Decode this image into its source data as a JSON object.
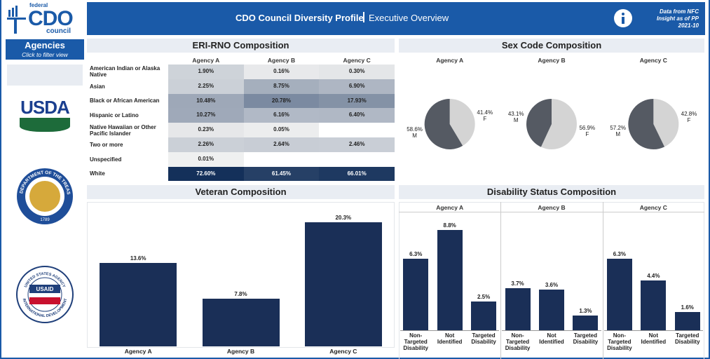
{
  "logo": {
    "top": "federal",
    "main": "CDO",
    "bottom": "council"
  },
  "header": {
    "title": "CDO Council Diversity Profile",
    "subtitle": "Executive Overview",
    "note": [
      "Data from NFC",
      "Insight as of PP",
      "2021-10"
    ]
  },
  "sidebar": {
    "title": "Agencies",
    "hint": "Click to filter view",
    "logos": [
      {
        "label": "USDA"
      },
      {
        "label": "THE DEPARTMENT OF THE TREASURY",
        "year": "1789"
      },
      {
        "label": "USAID",
        "top": "UNITED STATES AGENCY",
        "bottom": "INTERNATIONAL DEVELOPMENT"
      }
    ]
  },
  "chart_data": [
    {
      "type": "heatmap",
      "title": "ERI-RNO Composition",
      "columns": [
        "Agency A",
        "Agency B",
        "Agency C"
      ],
      "rows": [
        "American Indian or Alaska Native",
        "Asian",
        "Black or African American",
        "Hispanic or Latino",
        "Native Hawaiian or Other Pacific Islander",
        "Two or more",
        "Unspecified",
        "White"
      ],
      "values": [
        [
          1.9,
          0.16,
          0.3
        ],
        [
          2.25,
          8.75,
          6.9
        ],
        [
          10.48,
          20.78,
          17.93
        ],
        [
          10.27,
          6.16,
          6.4
        ],
        [
          0.23,
          0.05,
          null
        ],
        [
          2.26,
          2.64,
          2.46
        ],
        [
          0.01,
          null,
          null
        ],
        [
          72.6,
          61.45,
          66.01
        ]
      ],
      "value_labels": [
        [
          "1.90%",
          "0.16%",
          "0.30%"
        ],
        [
          "2.25%",
          "8.75%",
          "6.90%"
        ],
        [
          "10.48%",
          "20.78%",
          "17.93%"
        ],
        [
          "10.27%",
          "6.16%",
          "6.40%"
        ],
        [
          "0.23%",
          "0.05%",
          null
        ],
        [
          "2.26%",
          "2.64%",
          "2.46%"
        ],
        [
          "0.01%",
          null,
          null
        ],
        [
          "72.60%",
          "61.45%",
          "66.01%"
        ]
      ],
      "color_range": [
        "#f2f2f2",
        "#14305a"
      ]
    },
    {
      "type": "pie",
      "title": "Sex Code Composition",
      "categories": [
        "F",
        "M"
      ],
      "colors": [
        "#d4d4d4",
        "#555a63"
      ],
      "series": [
        {
          "name": "Agency A",
          "values": [
            41.4,
            58.6
          ],
          "value_labels": [
            "41.4%",
            "58.6%"
          ]
        },
        {
          "name": "Agency B",
          "values": [
            56.9,
            43.1
          ],
          "value_labels": [
            "56.9%",
            "43.1%"
          ]
        },
        {
          "name": "Agency C",
          "values": [
            42.8,
            57.2
          ],
          "value_labels": [
            "42.8%",
            "57.2%"
          ]
        }
      ]
    },
    {
      "type": "bar",
      "title": "Veteran Composition",
      "categories": [
        "Agency A",
        "Agency B",
        "Agency C"
      ],
      "values": [
        13.6,
        7.8,
        20.3
      ],
      "value_labels": [
        "13.6%",
        "7.8%",
        "20.3%"
      ],
      "color": "#1a2f57"
    },
    {
      "type": "bar",
      "title": "Disability Status Composition",
      "categories": [
        "Non-Targeted Disability",
        "Not Identified",
        "Targeted Disability"
      ],
      "color": "#1a2f57",
      "series": [
        {
          "name": "Agency A",
          "values": [
            6.3,
            8.8,
            2.5
          ],
          "value_labels": [
            "6.3%",
            "8.8%",
            "2.5%"
          ]
        },
        {
          "name": "Agency B",
          "values": [
            3.7,
            3.6,
            1.3
          ],
          "value_labels": [
            "3.7%",
            "3.6%",
            "1.3%"
          ]
        },
        {
          "name": "Agency C",
          "values": [
            6.3,
            4.4,
            1.6
          ],
          "value_labels": [
            "6.3%",
            "4.4%",
            "1.6%"
          ]
        }
      ]
    }
  ]
}
